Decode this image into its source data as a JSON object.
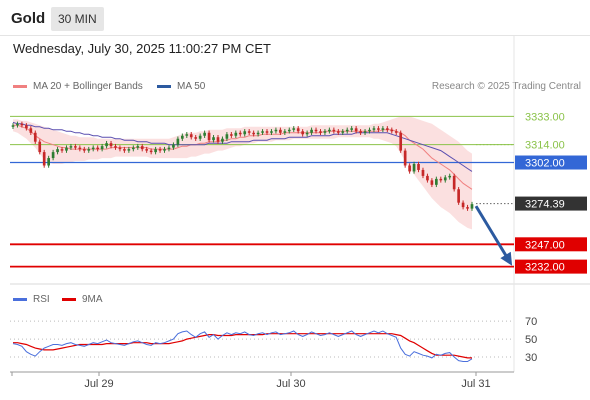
{
  "header": {
    "instrument": "Gold",
    "timeframe": "30 MIN",
    "datetime": "Wednesday, July 30, 2025 11:00:27 PM CET"
  },
  "legend": {
    "ma20_label": "MA 20 + Bollinger Bands",
    "ma50_label": "MA 50",
    "rsi_label": "RSI",
    "rsi_ma_label": "9MA",
    "credit": "Research © 2025 Trading Central"
  },
  "colors": {
    "bull_candle": "#2e7d32",
    "bear_candle": "#c62828",
    "bollinger_fill": "#f7c6c6",
    "ma20": "#f08080",
    "ma50": "#5a4fb0",
    "pivot_line": "#3367d6",
    "resistance_line": "#8bc34a",
    "support_line": "#e00000",
    "last_price_tag": "#333333",
    "arrow": "#2c5aa0",
    "rsi": "#4a6fdc",
    "rsi_ma": "#e00000"
  },
  "chart_data": [
    {
      "type": "candlestick",
      "title": "Gold 30 MIN",
      "x_ticks": [
        "Jul 29",
        "Jul 30",
        "Jul 31"
      ],
      "ylim": [
        3223,
        3340
      ],
      "levels": [
        {
          "value": 3333.0,
          "label": "3333.00",
          "kind": "resistance"
        },
        {
          "value": 3314.0,
          "label": "3314.00",
          "kind": "resistance"
        },
        {
          "value": 3302.0,
          "label": "3302.00",
          "kind": "pivot"
        },
        {
          "value": 3274.39,
          "label": "3274.39",
          "kind": "last"
        },
        {
          "value": 3247.0,
          "label": "3247.00",
          "kind": "support"
        },
        {
          "value": 3232.0,
          "label": "3232.00",
          "kind": "support"
        }
      ],
      "close": [
        3327,
        3328,
        3327,
        3325,
        3322,
        3316,
        3309,
        3300,
        3305,
        3309,
        3311,
        3310,
        3312,
        3313,
        3312,
        3311,
        3310,
        3311,
        3312,
        3311,
        3313,
        3315,
        3313,
        3312,
        3311,
        3310,
        3311,
        3312,
        3313,
        3311,
        3310,
        3309,
        3311,
        3310,
        3311,
        3312,
        3314,
        3318,
        3320,
        3321,
        3319,
        3318,
        3320,
        3322,
        3317,
        3319,
        3316,
        3318,
        3321,
        3320,
        3322,
        3321,
        3323,
        3322,
        3321,
        3322,
        3323,
        3322,
        3323,
        3324,
        3322,
        3323,
        3324,
        3325,
        3323,
        3321,
        3322,
        3324,
        3323,
        3322,
        3323,
        3324,
        3323,
        3322,
        3323,
        3324,
        3325,
        3323,
        3322,
        3323,
        3324,
        3325,
        3324,
        3325,
        3324,
        3323,
        3322,
        3310,
        3300,
        3296,
        3301,
        3297,
        3293,
        3290,
        3287,
        3291,
        3290,
        3292,
        3293,
        3284,
        3275,
        3272,
        3271,
        3274
      ],
      "ma20": [
        3327,
        3327,
        3326,
        3325,
        3323,
        3320,
        3318,
        3316,
        3315,
        3314,
        3313,
        3312,
        3312,
        3311,
        3311,
        3311,
        3311,
        3311,
        3311,
        3311,
        3311,
        3311,
        3312,
        3312,
        3312,
        3312,
        3312,
        3312,
        3312,
        3312,
        3312,
        3311,
        3311,
        3311,
        3311,
        3311,
        3311,
        3312,
        3313,
        3313,
        3314,
        3314,
        3315,
        3315,
        3316,
        3316,
        3316,
        3317,
        3317,
        3318,
        3318,
        3319,
        3319,
        3320,
        3320,
        3320,
        3321,
        3321,
        3321,
        3321,
        3321,
        3322,
        3322,
        3322,
        3322,
        3322,
        3322,
        3322,
        3322,
        3322,
        3323,
        3323,
        3323,
        3323,
        3323,
        3323,
        3323,
        3323,
        3323,
        3323,
        3323,
        3323,
        3323,
        3324,
        3324,
        3324,
        3323,
        3322,
        3320,
        3317,
        3315,
        3313,
        3311,
        3308,
        3305,
        3303,
        3301,
        3299,
        3297,
        3294,
        3291,
        3288,
        3286,
        3284
      ],
      "ma50": [
        3329,
        3328,
        3328,
        3327,
        3327,
        3326,
        3326,
        3325,
        3325,
        3324,
        3324,
        3324,
        3323,
        3323,
        3322,
        3322,
        3321,
        3321,
        3320,
        3320,
        3319,
        3319,
        3319,
        3318,
        3318,
        3317,
        3317,
        3317,
        3316,
        3316,
        3316,
        3315,
        3315,
        3315,
        3315,
        3314,
        3314,
        3314,
        3314,
        3314,
        3314,
        3314,
        3314,
        3314,
        3315,
        3315,
        3315,
        3315,
        3315,
        3316,
        3316,
        3316,
        3316,
        3316,
        3317,
        3317,
        3317,
        3317,
        3318,
        3318,
        3318,
        3318,
        3319,
        3319,
        3319,
        3319,
        3319,
        3320,
        3320,
        3320,
        3320,
        3320,
        3321,
        3321,
        3321,
        3321,
        3321,
        3322,
        3322,
        3322,
        3322,
        3322,
        3322,
        3322,
        3322,
        3321,
        3320,
        3319,
        3318,
        3317,
        3316,
        3315,
        3314,
        3313,
        3312,
        3311,
        3310,
        3308,
        3306,
        3304,
        3302,
        3300,
        3298,
        3296
      ],
      "bb_upper": [
        3331,
        3331,
        3330,
        3330,
        3329,
        3328,
        3327,
        3326,
        3325,
        3324,
        3323,
        3322,
        3321,
        3320,
        3320,
        3319,
        3319,
        3319,
        3319,
        3318,
        3318,
        3318,
        3318,
        3318,
        3318,
        3318,
        3318,
        3318,
        3318,
        3318,
        3318,
        3318,
        3318,
        3318,
        3318,
        3318,
        3319,
        3320,
        3321,
        3322,
        3322,
        3322,
        3323,
        3323,
        3324,
        3324,
        3324,
        3324,
        3325,
        3325,
        3325,
        3325,
        3326,
        3326,
        3326,
        3326,
        3326,
        3326,
        3326,
        3326,
        3326,
        3326,
        3326,
        3326,
        3326,
        3326,
        3326,
        3327,
        3327,
        3327,
        3327,
        3327,
        3327,
        3327,
        3327,
        3327,
        3327,
        3327,
        3327,
        3327,
        3327,
        3328,
        3328,
        3329,
        3330,
        3331,
        3332,
        3333,
        3333,
        3333,
        3332,
        3331,
        3330,
        3329,
        3328,
        3326,
        3324,
        3322,
        3320,
        3318,
        3316,
        3313,
        3310,
        3308
      ],
      "bb_lower": [
        3323,
        3322,
        3320,
        3318,
        3315,
        3312,
        3308,
        3304,
        3302,
        3301,
        3301,
        3301,
        3302,
        3302,
        3303,
        3303,
        3303,
        3304,
        3304,
        3304,
        3305,
        3305,
        3305,
        3306,
        3306,
        3306,
        3306,
        3306,
        3306,
        3306,
        3306,
        3305,
        3305,
        3305,
        3305,
        3305,
        3305,
        3305,
        3305,
        3305,
        3306,
        3306,
        3307,
        3308,
        3308,
        3309,
        3310,
        3310,
        3311,
        3312,
        3313,
        3313,
        3314,
        3315,
        3315,
        3316,
        3316,
        3316,
        3316,
        3317,
        3317,
        3317,
        3317,
        3318,
        3318,
        3318,
        3318,
        3318,
        3318,
        3318,
        3318,
        3318,
        3318,
        3319,
        3319,
        3319,
        3319,
        3319,
        3319,
        3319,
        3319,
        3318,
        3318,
        3317,
        3316,
        3315,
        3313,
        3308,
        3303,
        3298,
        3294,
        3290,
        3286,
        3282,
        3278,
        3275,
        3272,
        3270,
        3268,
        3265,
        3262,
        3260,
        3258,
        3257
      ]
    },
    {
      "type": "line",
      "title": "RSI",
      "y_ticks": [
        70,
        50,
        30
      ],
      "ylim": [
        20,
        78
      ],
      "series": [
        {
          "name": "RSI",
          "values": [
            45,
            44,
            42,
            36,
            33,
            31,
            36,
            40,
            42,
            44,
            44,
            43,
            45,
            46,
            44,
            43,
            42,
            44,
            46,
            45,
            47,
            49,
            46,
            45,
            44,
            43,
            45,
            47,
            48,
            46,
            44,
            43,
            46,
            45,
            46,
            48,
            50,
            56,
            58,
            59,
            55,
            52,
            56,
            58,
            52,
            55,
            50,
            54,
            57,
            55,
            57,
            56,
            58,
            55,
            54,
            56,
            57,
            55,
            57,
            58,
            55,
            56,
            57,
            59,
            55,
            53,
            55,
            58,
            56,
            54,
            55,
            57,
            55,
            53,
            55,
            57,
            59,
            55,
            53,
            55,
            57,
            59,
            57,
            59,
            56,
            54,
            52,
            40,
            33,
            31,
            36,
            34,
            32,
            31,
            29,
            33,
            32,
            34,
            35,
            30,
            26,
            25,
            25,
            28
          ]
        },
        {
          "name": "9MA",
          "values": [
            46,
            46,
            45,
            44,
            42,
            40,
            39,
            38,
            38,
            38,
            39,
            40,
            41,
            42,
            43,
            44,
            44,
            44,
            44,
            44,
            44,
            45,
            45,
            45,
            45,
            45,
            45,
            46,
            46,
            46,
            46,
            45,
            45,
            45,
            45,
            45,
            46,
            47,
            48,
            50,
            51,
            52,
            53,
            54,
            55,
            55,
            54,
            54,
            54,
            54,
            55,
            55,
            55,
            55,
            55,
            55,
            55,
            56,
            56,
            56,
            56,
            56,
            56,
            56,
            56,
            56,
            56,
            56,
            56,
            56,
            56,
            56,
            56,
            56,
            56,
            56,
            56,
            56,
            56,
            56,
            56,
            56,
            56,
            56,
            56,
            56,
            55,
            54,
            51,
            48,
            46,
            43,
            40,
            37,
            34,
            32,
            32,
            32,
            32,
            32,
            31,
            30,
            29,
            29
          ]
        }
      ]
    }
  ]
}
